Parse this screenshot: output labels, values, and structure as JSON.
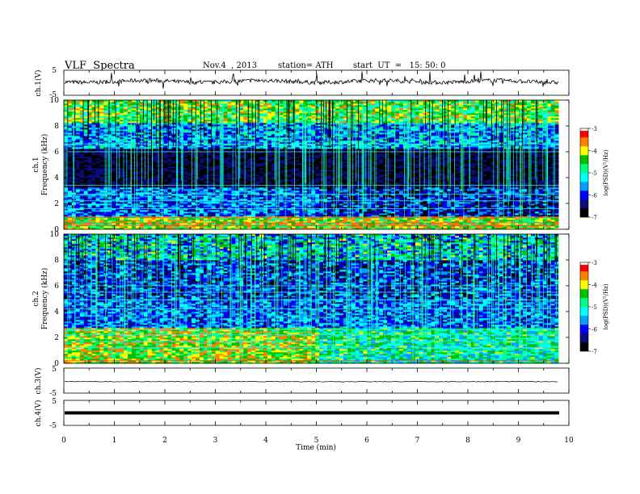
{
  "header": {
    "title": "VLF  Spectra",
    "date": "Nov.4  , 2013",
    "station": "station= ATH",
    "start": "start  UT  =   15: 50: 0"
  },
  "colors": {
    "colormap": [
      "#000000",
      "#0b0b7a",
      "#0000ff",
      "#00a0ff",
      "#00ffff",
      "#00ff80",
      "#00c000",
      "#ffff00",
      "#ff8000",
      "#ff0000",
      "#ffffff"
    ]
  },
  "colorbar": {
    "label": "log(PSD)(V²/Hz)",
    "ticks": [
      "-3",
      "-4",
      "-5",
      "-6",
      "-7"
    ],
    "range": [
      -7,
      -3
    ]
  },
  "chart_data": [
    {
      "type": "line",
      "ylabel": "ch.1(V)",
      "ylim": [
        -5,
        5
      ],
      "yticks": [
        "5",
        "-5"
      ],
      "x_range_min": [
        0,
        9.8
      ],
      "description_level": "signal fluctuating around +0.5 V with sharp spikes"
    },
    {
      "type": "heatmap",
      "ylabel": "ch.1\nFrequency  (kHz)",
      "ylabel_lines": [
        "ch.1",
        "Frequency  (kHz)"
      ],
      "ylim": [
        0,
        10
      ],
      "yticks": [
        "10",
        "8",
        "6",
        "4",
        "2",
        "0"
      ],
      "x_range_min": [
        0,
        9.8
      ],
      "z_range": [
        -7,
        -3
      ]
    },
    {
      "type": "heatmap",
      "ylabel_lines": [
        "ch.2",
        "Frequency  (kHz)"
      ],
      "ylim": [
        0,
        10
      ],
      "yticks": [
        "10",
        "8",
        "6",
        "4",
        "2",
        "0"
      ],
      "x_range_min": [
        0,
        9.8
      ],
      "z_range": [
        -7,
        -3
      ]
    },
    {
      "type": "line",
      "ylabel": "ch.3(V)",
      "ylim": [
        -5,
        5
      ],
      "yticks": [
        "5",
        "-5"
      ],
      "x_range_min": [
        0,
        9.8
      ]
    },
    {
      "type": "line",
      "ylabel": "ch.4(V)",
      "ylim": [
        -5,
        5
      ],
      "yticks": [
        "5",
        "-5"
      ],
      "x_range_min": [
        0,
        9.8
      ]
    }
  ],
  "xaxis": {
    "label": "Time  (min)",
    "xlim": [
      0,
      10
    ],
    "ticks": [
      "0",
      "1",
      "2",
      "3",
      "4",
      "5",
      "6",
      "7",
      "8",
      "9",
      "10"
    ]
  }
}
